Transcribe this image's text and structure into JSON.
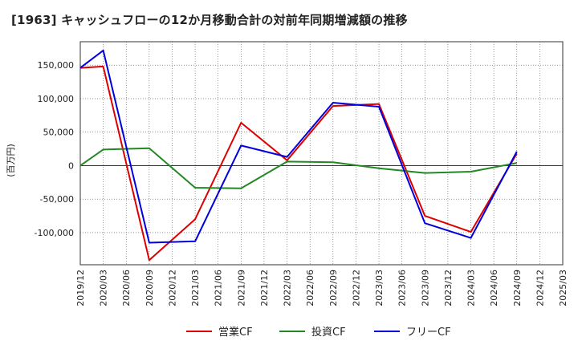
{
  "chart_data": {
    "type": "line",
    "title": "[1963]  キャッシュフローの12か月移動合計の対前年同期増減額の推移",
    "ylabel": "(百万円)",
    "xlabel": "",
    "ylim": [
      -148000,
      185000
    ],
    "yticks": [
      150000,
      100000,
      50000,
      0,
      -50000,
      -100000
    ],
    "ytick_labels": [
      "150,000",
      "100,000",
      "50,000",
      "0",
      "-50,000",
      "-100,000"
    ],
    "categories": [
      "2019/12",
      "2020/03",
      "2020/06",
      "2020/09",
      "2020/12",
      "2021/03",
      "2021/06",
      "2021/09",
      "2021/12",
      "2022/03",
      "2022/06",
      "2022/09",
      "2022/12",
      "2023/03",
      "2023/06",
      "2023/09",
      "2023/12",
      "2024/03",
      "2024/06",
      "2024/09",
      "2024/12",
      "2025/03"
    ],
    "grid": true,
    "legend_position": "bottom",
    "series": [
      {
        "name": "営業CF",
        "color": "#dd0000",
        "values": [
          146000,
          148000,
          null,
          -141000,
          null,
          -80000,
          null,
          64000,
          null,
          8000,
          null,
          89000,
          null,
          92000,
          null,
          -75000,
          null,
          -99000,
          null,
          18000,
          null,
          null
        ]
      },
      {
        "name": "投資CF",
        "color": "#228822",
        "values": [
          0,
          24000,
          null,
          26000,
          null,
          -33000,
          null,
          -34000,
          null,
          6000,
          null,
          5000,
          null,
          -4000,
          null,
          -11000,
          null,
          -9000,
          null,
          4000,
          null,
          null
        ]
      },
      {
        "name": "フリーCF",
        "color": "#0000dd",
        "values": [
          146000,
          172000,
          null,
          -115000,
          null,
          -113000,
          null,
          30000,
          null,
          13000,
          null,
          94000,
          null,
          88000,
          null,
          -86000,
          null,
          -108000,
          null,
          21000,
          null,
          null
        ]
      }
    ]
  }
}
